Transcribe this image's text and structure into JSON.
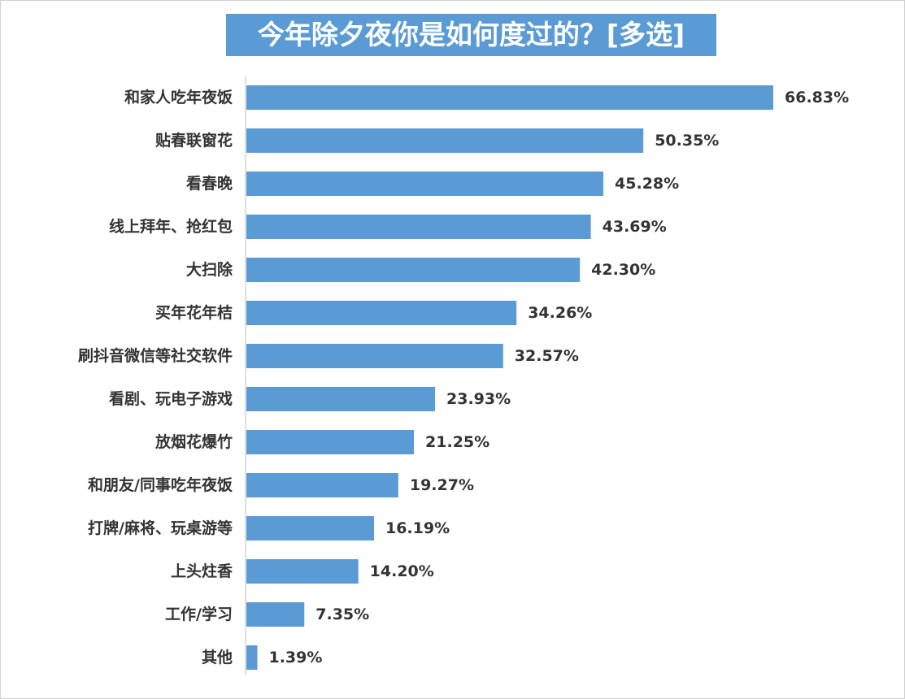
{
  "chart_data": {
    "type": "bar",
    "orientation": "horizontal",
    "title": "今年除夕夜你是如何度过的？[多选]",
    "categories": [
      "和家人吃年夜饭",
      "贴春联窗花",
      "看春晚",
      "线上拜年、抢红包",
      "大扫除",
      "买年花年桔",
      "刷抖音微信等社交软件",
      "看剧、玩电子游戏",
      "放烟花爆竹",
      "和朋友/同事吃年夜饭",
      "打牌/麻将、玩桌游等",
      "上头炷香",
      "工作/学习",
      "其他"
    ],
    "values": [
      66.83,
      50.35,
      45.28,
      43.69,
      42.3,
      34.26,
      32.57,
      23.93,
      21.25,
      19.27,
      16.19,
      14.2,
      7.35,
      1.39
    ],
    "value_labels": [
      "66.83%",
      "50.35%",
      "45.28%",
      "43.69%",
      "42.30%",
      "34.26%",
      "32.57%",
      "23.93%",
      "21.25%",
      "19.27%",
      "16.19%",
      "14.20%",
      "7.35%",
      "1.39%"
    ],
    "xlim": [
      0,
      70
    ],
    "grid": false,
    "legend": "none",
    "bar_color": "#5b9bd5",
    "title_background": "#5b9bd5"
  }
}
